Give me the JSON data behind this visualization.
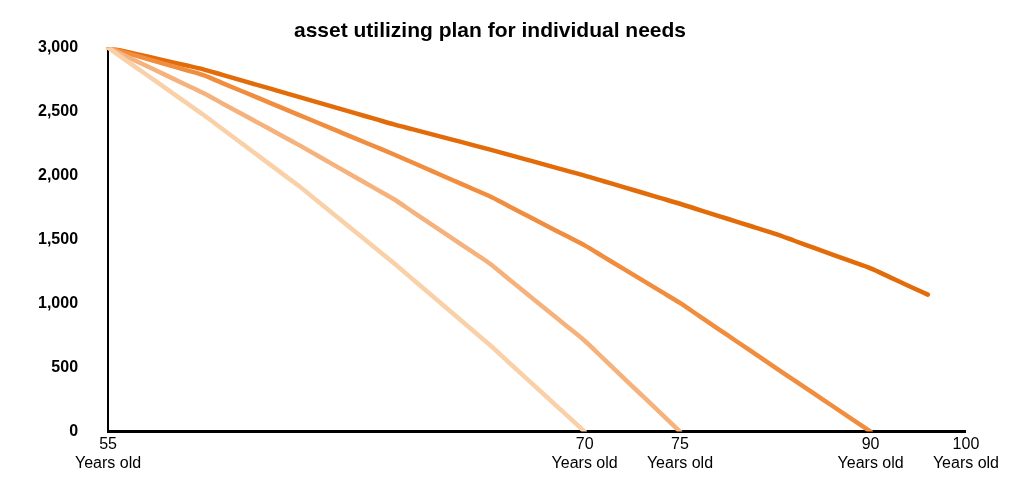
{
  "chart_data": {
    "type": "line",
    "title": "asset utilizing plan for individual needs",
    "categories": [
      "55 Years old",
      null,
      null,
      null,
      null,
      null,
      null,
      null,
      null,
      null,
      null,
      null,
      null,
      null,
      null,
      null,
      null,
      null,
      null,
      null,
      null,
      null,
      null,
      null,
      null,
      "70 Years old",
      null,
      null,
      null,
      null,
      "75 Years old",
      null,
      null,
      null,
      null,
      null,
      null,
      null,
      null,
      null,
      "90 Years old",
      null,
      null,
      null,
      null,
      "100 Years old"
    ],
    "ylim": [
      0,
      3000
    ],
    "yticks": [
      0,
      500,
      {
        "value": 1000,
        "label": "1,000"
      },
      {
        "value": 1500,
        "label": "1,500"
      },
      {
        "value": 2000,
        "label": "2,000"
      },
      {
        "value": 2500,
        "label": "2,500"
      },
      {
        "value": 3000,
        "label": "3,000"
      }
    ],
    "grid": false,
    "legend": false,
    "marker": "none",
    "line_style": "solid",
    "series": [
      {
        "color": "#fad0a8",
        "values": [
          3000,
          2895,
          2790,
          2685,
          2580,
          2475,
          2364,
          2253,
          2142,
          2031,
          1920,
          1799,
          1678,
          1557,
          1436,
          1315,
          1188,
          1061,
          934,
          807,
          680,
          544,
          408,
          272,
          136,
          0,
          null,
          null,
          null,
          null,
          null,
          null,
          null,
          null,
          null,
          null,
          null,
          null,
          null,
          null,
          null,
          null,
          null,
          null,
          null,
          null
        ]
      },
      {
        "color": "#f6b27c",
        "values": [
          3000,
          2929,
          2858,
          2787,
          2716,
          2645,
          2564,
          2483,
          2402,
          2321,
          2240,
          2155,
          2070,
          1985,
          1900,
          1815,
          1715,
          1615,
          1515,
          1415,
          1315,
          1194,
          1073,
          952,
          831,
          710,
          568,
          426,
          284,
          142,
          0,
          null,
          null,
          null,
          null,
          null,
          null,
          null,
          null,
          null,
          null,
          null,
          null,
          null,
          null,
          null
        ]
      },
      {
        "color": "#f18d3e",
        "values": [
          3000,
          2957,
          2914,
          2871,
          2828,
          2785,
          2723,
          2661,
          2599,
          2537,
          2475,
          2413,
          2351,
          2289,
          2227,
          2165,
          2100,
          2035,
          1970,
          1905,
          1840,
          1763,
          1686,
          1609,
          1532,
          1455,
          1365,
          1275,
          1185,
          1095,
          1005,
          904,
          803,
          702,
          601,
          500,
          400,
          300,
          200,
          100,
          0,
          null,
          null,
          null,
          null,
          null
        ]
      },
      {
        "color": "#e36c0a",
        "values": [
          3000,
          2966,
          2932,
          2898,
          2864,
          2830,
          2787,
          2744,
          2701,
          2658,
          2615,
          2572,
          2529,
          2486,
          2443,
          2400,
          2361,
          2322,
          2283,
          2244,
          2205,
          2164,
          2123,
          2082,
          2041,
          2000,
          1956,
          1912,
          1868,
          1824,
          1780,
          1733,
          1686,
          1639,
          1592,
          1545,
          1491,
          1437,
          1383,
          1329,
          1275,
          1207,
          1138,
          1070,
          null,
          null
        ]
      }
    ]
  }
}
